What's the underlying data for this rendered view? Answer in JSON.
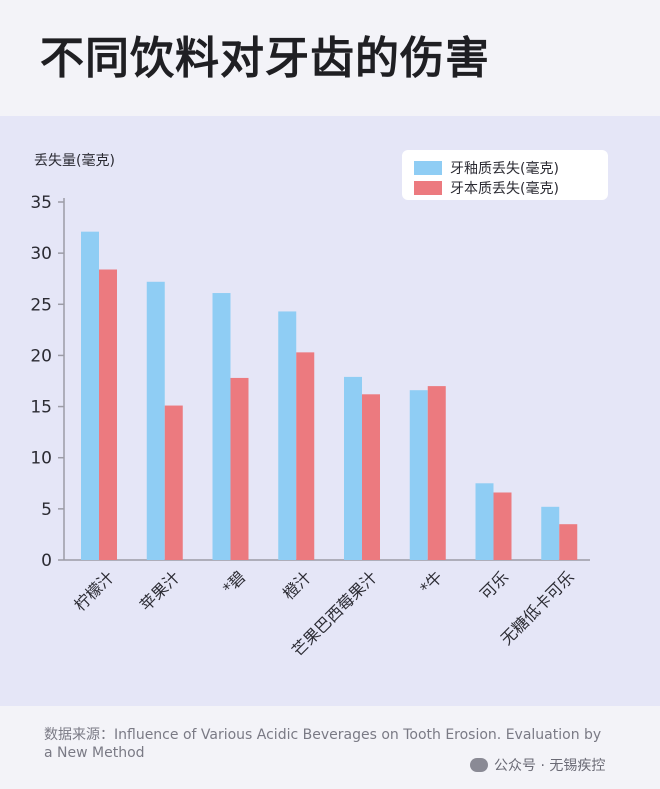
{
  "title": "不同饮料对牙齿的伤害",
  "source_text": "数据来源：Influence of Various Acidic Beverages on Tooth Erosion. Evaluation by a New Method",
  "watermark_text": "公众号 · 无锡疾控",
  "colors": {
    "enamel": "#8fcdf4",
    "dentin": "#ec7a7f",
    "axis": "#9c9ca6",
    "text": "#2b2b33"
  },
  "chart_data": {
    "type": "bar",
    "ylabel": "丢失量(毫克)",
    "xlabel": "",
    "ylim": [
      0,
      35
    ],
    "yticks": [
      0,
      5,
      10,
      15,
      20,
      25,
      30,
      35
    ],
    "legend_position": "top-right",
    "grid": false,
    "categories": [
      "柠檬汁",
      "苹果汁",
      "*碧",
      "橙汁",
      "芒果巴西莓果汁",
      "*牛",
      "可乐",
      "无糖低卡可乐"
    ],
    "series": [
      {
        "name": "牙釉质丢失(毫克)",
        "values": [
          32.1,
          27.2,
          26.1,
          24.3,
          17.9,
          16.6,
          7.5,
          5.2
        ]
      },
      {
        "name": "牙本质丢失(毫克)",
        "values": [
          28.4,
          15.1,
          17.8,
          20.3,
          16.2,
          17.0,
          6.6,
          3.5
        ]
      }
    ]
  }
}
